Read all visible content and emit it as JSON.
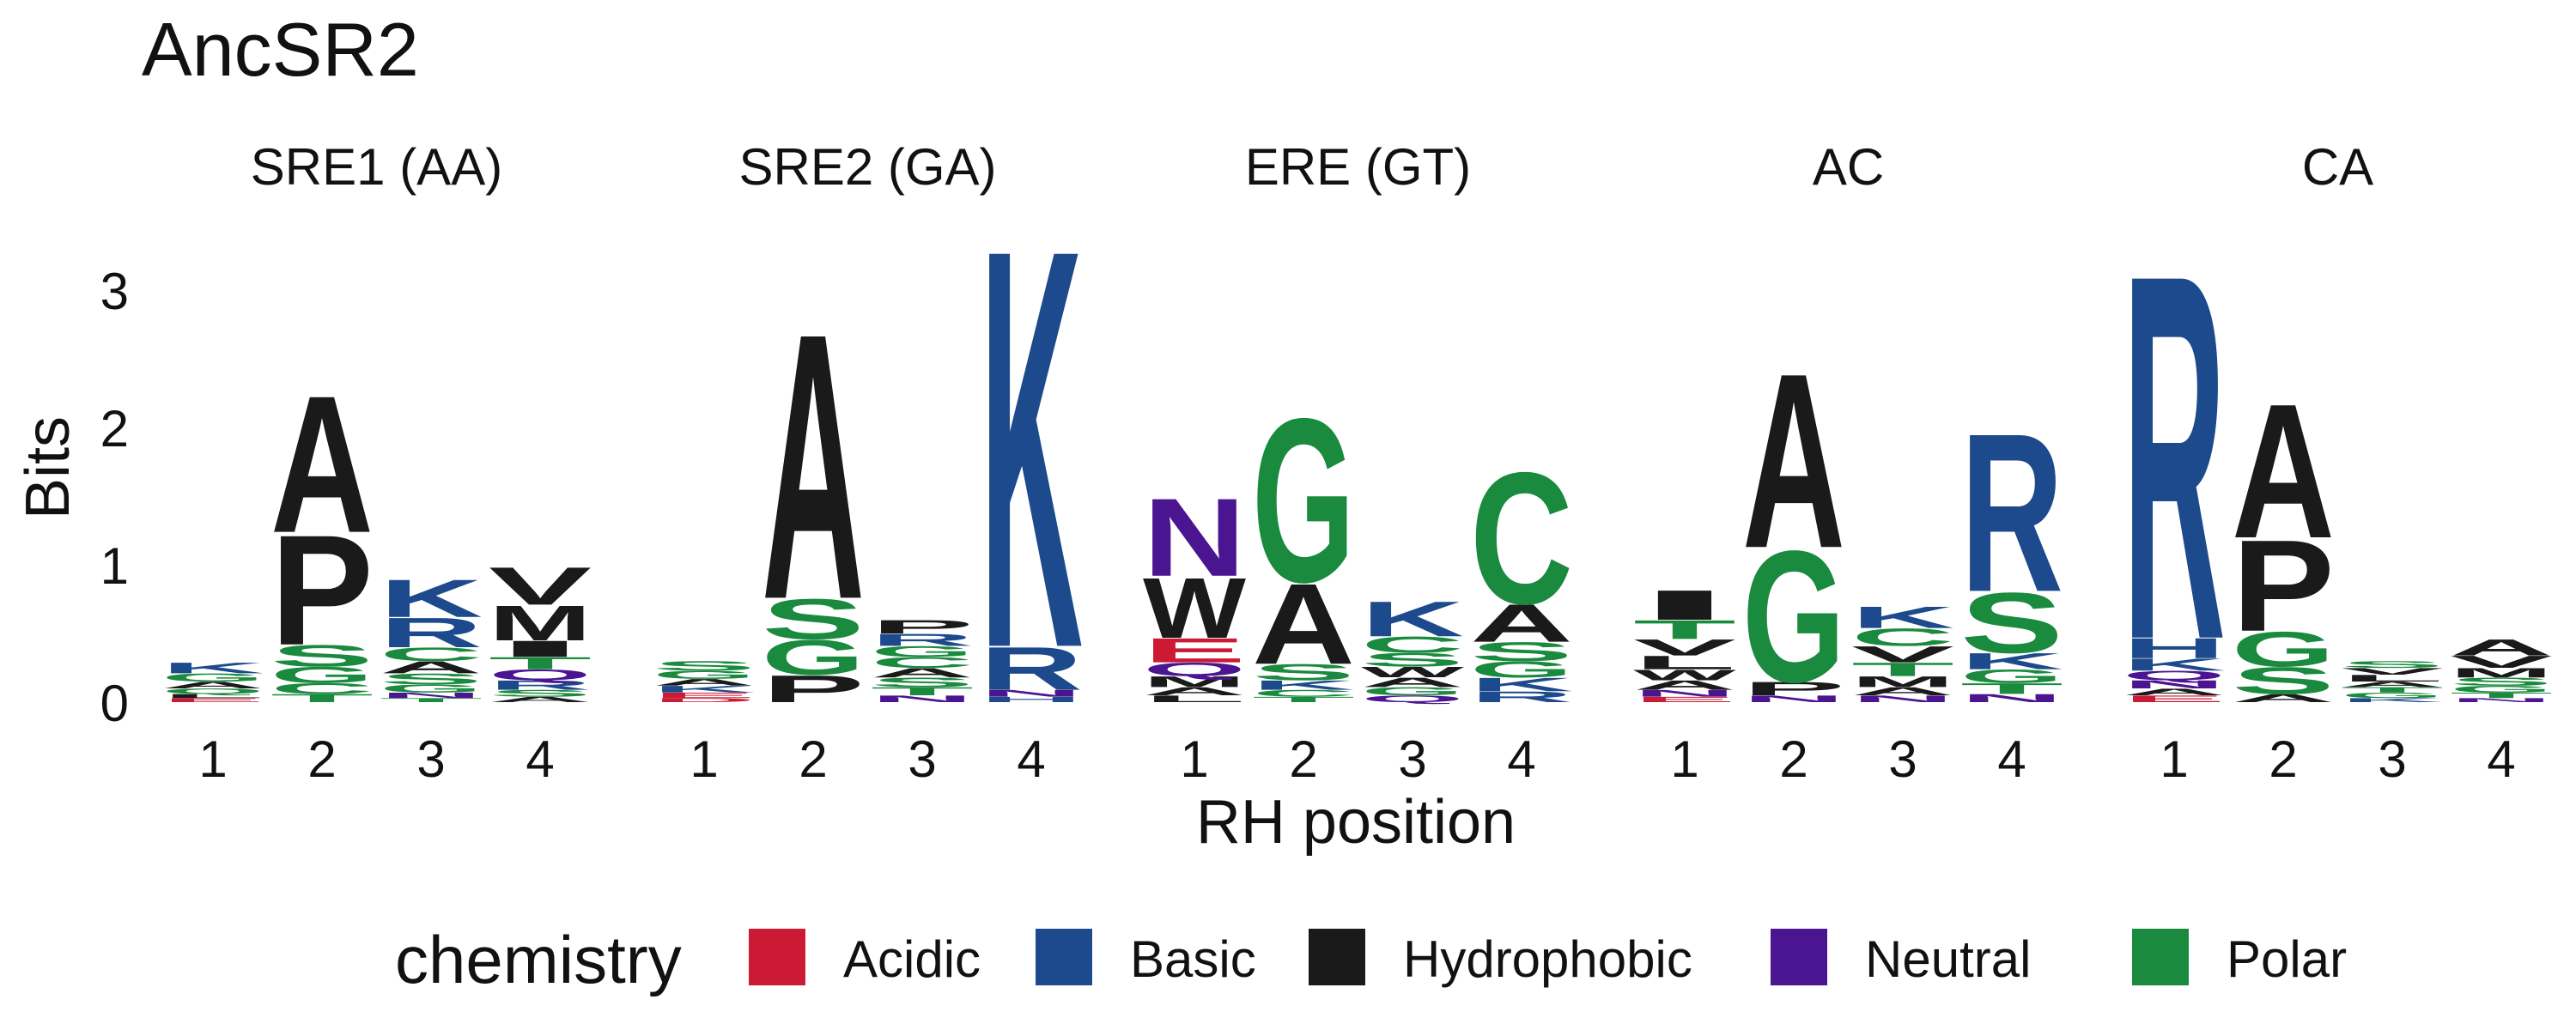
{
  "chart_data": {
    "type": "sequence-logo",
    "title": "AncSR2",
    "xlabel": "RH position",
    "ylabel": "Bits",
    "ylim": [
      0,
      3.4
    ],
    "y_ticks": [
      "0",
      "1",
      "2",
      "3"
    ],
    "positions": [
      "1",
      "2",
      "3",
      "4"
    ],
    "legend": {
      "title": "chemistry",
      "placement": "bottom",
      "entries": [
        {
          "name": "Acidic",
          "color": "#CC1A34"
        },
        {
          "name": "Basic",
          "color": "#1D4A8C"
        },
        {
          "name": "Hydrophobic",
          "color": "#1A1A1A"
        },
        {
          "name": "Neutral",
          "color": "#4B1591"
        },
        {
          "name": "Polar",
          "color": "#1A8A3E"
        }
      ]
    },
    "panels": [
      {
        "name": "SRE1 (AA)",
        "stacks": [
          [
            {
              "aa": "K",
              "class": "Basic",
              "bits": 0.08
            },
            {
              "aa": "G",
              "class": "Polar",
              "bits": 0.06
            },
            {
              "aa": "A",
              "class": "Hydrophobic",
              "bits": 0.05
            },
            {
              "aa": "Q",
              "class": "Polar",
              "bits": 0.04
            },
            {
              "aa": "E",
              "class": "Acidic",
              "bits": 0.03
            },
            {
              "aa": "L",
              "class": "Hydrophobic",
              "bits": 0.03
            }
          ],
          [
            {
              "aa": "A",
              "class": "Hydrophobic",
              "bits": 1.02
            },
            {
              "aa": "P",
              "class": "Hydrophobic",
              "bits": 0.82
            },
            {
              "aa": "S",
              "class": "Polar",
              "bits": 0.16
            },
            {
              "aa": "G",
              "class": "Polar",
              "bits": 0.12
            },
            {
              "aa": "C",
              "class": "Polar",
              "bits": 0.08
            },
            {
              "aa": "T",
              "class": "Polar",
              "bits": 0.06
            }
          ],
          [
            {
              "aa": "K",
              "class": "Basic",
              "bits": 0.28
            },
            {
              "aa": "R",
              "class": "Basic",
              "bits": 0.22
            },
            {
              "aa": "C",
              "class": "Polar",
              "bits": 0.1
            },
            {
              "aa": "A",
              "class": "Hydrophobic",
              "bits": 0.09
            },
            {
              "aa": "S",
              "class": "Polar",
              "bits": 0.08
            },
            {
              "aa": "G",
              "class": "Polar",
              "bits": 0.06
            },
            {
              "aa": "N",
              "class": "Neutral",
              "bits": 0.04
            },
            {
              "aa": "T",
              "class": "Polar",
              "bits": 0.03
            }
          ],
          [
            {
              "aa": "V",
              "class": "Hydrophobic",
              "bits": 0.28
            },
            {
              "aa": "M",
              "class": "Hydrophobic",
              "bits": 0.26
            },
            {
              "aa": "I",
              "class": "Hydrophobic",
              "bits": 0.12
            },
            {
              "aa": "T",
              "class": "Polar",
              "bits": 0.09
            },
            {
              "aa": "Q",
              "class": "Neutral",
              "bits": 0.08
            },
            {
              "aa": "R",
              "class": "Basic",
              "bits": 0.07
            },
            {
              "aa": "S",
              "class": "Polar",
              "bits": 0.05
            },
            {
              "aa": "A",
              "class": "Hydrophobic",
              "bits": 0.04
            }
          ]
        ]
      },
      {
        "name": "SRE2 (GA)",
        "stacks": [
          [
            {
              "aa": "S",
              "class": "Polar",
              "bits": 0.07
            },
            {
              "aa": "G",
              "class": "Polar",
              "bits": 0.06
            },
            {
              "aa": "K",
              "class": "Basic",
              "bits": 0.05
            },
            {
              "aa": "A",
              "class": "Hydrophobic",
              "bits": 0.05
            },
            {
              "aa": "E",
              "class": "Acidic",
              "bits": 0.04
            },
            {
              "aa": "D",
              "class": "Acidic",
              "bits": 0.03
            }
          ],
          [
            {
              "aa": "A",
              "class": "Hydrophobic",
              "bits": 1.98
            },
            {
              "aa": "S",
              "class": "Polar",
              "bits": 0.3
            },
            {
              "aa": "G",
              "class": "Polar",
              "bits": 0.26
            },
            {
              "aa": "P",
              "class": "Hydrophobic",
              "bits": 0.2
            }
          ],
          [
            {
              "aa": "P",
              "class": "Hydrophobic",
              "bits": 0.1
            },
            {
              "aa": "R",
              "class": "Basic",
              "bits": 0.09
            },
            {
              "aa": "C",
              "class": "Polar",
              "bits": 0.08
            },
            {
              "aa": "G",
              "class": "Polar",
              "bits": 0.08
            },
            {
              "aa": "S",
              "class": "Polar",
              "bits": 0.07
            },
            {
              "aa": "A",
              "class": "Hydrophobic",
              "bits": 0.07
            },
            {
              "aa": "T",
              "class": "Polar",
              "bits": 0.06
            },
            {
              "aa": "N",
              "class": "Neutral",
              "bits": 0.05
            }
          ],
          [
            {
              "aa": "K",
              "class": "Basic",
              "bits": 2.97
            },
            {
              "aa": "R",
              "class": "Basic",
              "bits": 0.32
            },
            {
              "aa": "N",
              "class": "Neutral",
              "bits": 0.05
            },
            {
              "aa": "H",
              "class": "Basic",
              "bits": 0.04
            }
          ]
        ]
      },
      {
        "name": "ERE (GT)",
        "stacks": [
          [
            {
              "aa": "N",
              "class": "Neutral",
              "bits": 0.58
            },
            {
              "aa": "W",
              "class": "Hydrophobic",
              "bits": 0.45
            },
            {
              "aa": "E",
              "class": "Acidic",
              "bits": 0.18
            },
            {
              "aa": "Q",
              "class": "Neutral",
              "bits": 0.1
            },
            {
              "aa": "M",
              "class": "Hydrophobic",
              "bits": 0.08
            },
            {
              "aa": "A",
              "class": "Hydrophobic",
              "bits": 0.06
            },
            {
              "aa": "L",
              "class": "Hydrophobic",
              "bits": 0.05
            }
          ],
          [
            {
              "aa": "G",
              "class": "Polar",
              "bits": 1.22
            },
            {
              "aa": "A",
              "class": "Hydrophobic",
              "bits": 0.6
            },
            {
              "aa": "S",
              "class": "Polar",
              "bits": 0.12
            },
            {
              "aa": "K",
              "class": "Basic",
              "bits": 0.07
            },
            {
              "aa": "C",
              "class": "Polar",
              "bits": 0.05
            },
            {
              "aa": "T",
              "class": "Polar",
              "bits": 0.04
            }
          ],
          [
            {
              "aa": "K",
              "class": "Basic",
              "bits": 0.26
            },
            {
              "aa": "C",
              "class": "Polar",
              "bits": 0.12
            },
            {
              "aa": "S",
              "class": "Polar",
              "bits": 0.1
            },
            {
              "aa": "W",
              "class": "Hydrophobic",
              "bits": 0.08
            },
            {
              "aa": "A",
              "class": "Hydrophobic",
              "bits": 0.07
            },
            {
              "aa": "G",
              "class": "Polar",
              "bits": 0.06
            },
            {
              "aa": "Q",
              "class": "Neutral",
              "bits": 0.05
            }
          ],
          [
            {
              "aa": "C",
              "class": "Polar",
              "bits": 0.98
            },
            {
              "aa": "A",
              "class": "Hydrophobic",
              "bits": 0.28
            },
            {
              "aa": "S",
              "class": "Polar",
              "bits": 0.14
            },
            {
              "aa": "G",
              "class": "Polar",
              "bits": 0.12
            },
            {
              "aa": "K",
              "class": "Basic",
              "bits": 0.1
            },
            {
              "aa": "R",
              "class": "Basic",
              "bits": 0.08
            }
          ]
        ]
      },
      {
        "name": "AC",
        "stacks": [
          [
            {
              "aa": "I",
              "class": "Hydrophobic",
              "bits": 0.22
            },
            {
              "aa": "T",
              "class": "Polar",
              "bits": 0.14
            },
            {
              "aa": "V",
              "class": "Hydrophobic",
              "bits": 0.12
            },
            {
              "aa": "L",
              "class": "Hydrophobic",
              "bits": 0.1
            },
            {
              "aa": "W",
              "class": "Hydrophobic",
              "bits": 0.08
            },
            {
              "aa": "A",
              "class": "Hydrophobic",
              "bits": 0.07
            },
            {
              "aa": "N",
              "class": "Neutral",
              "bits": 0.05
            },
            {
              "aa": "E",
              "class": "Acidic",
              "bits": 0.04
            }
          ],
          [
            {
              "aa": "A",
              "class": "Hydrophobic",
              "bits": 1.3
            },
            {
              "aa": "G",
              "class": "Polar",
              "bits": 0.98
            },
            {
              "aa": "P",
              "class": "Hydrophobic",
              "bits": 0.1
            },
            {
              "aa": "N",
              "class": "Neutral",
              "bits": 0.05
            }
          ],
          [
            {
              "aa": "K",
              "class": "Basic",
              "bits": 0.16
            },
            {
              "aa": "C",
              "class": "Polar",
              "bits": 0.13
            },
            {
              "aa": "V",
              "class": "Hydrophobic",
              "bits": 0.12
            },
            {
              "aa": "T",
              "class": "Polar",
              "bits": 0.1
            },
            {
              "aa": "M",
              "class": "Hydrophobic",
              "bits": 0.08
            },
            {
              "aa": "A",
              "class": "Hydrophobic",
              "bits": 0.06
            },
            {
              "aa": "N",
              "class": "Neutral",
              "bits": 0.05
            }
          ],
          [
            {
              "aa": "R",
              "class": "Basic",
              "bits": 1.18
            },
            {
              "aa": "S",
              "class": "Polar",
              "bits": 0.45
            },
            {
              "aa": "K",
              "class": "Basic",
              "bits": 0.12
            },
            {
              "aa": "G",
              "class": "Polar",
              "bits": 0.1
            },
            {
              "aa": "T",
              "class": "Polar",
              "bits": 0.08
            },
            {
              "aa": "N",
              "class": "Neutral",
              "bits": 0.06
            }
          ]
        ]
      },
      {
        "name": "CA",
        "stacks": [
          [
            {
              "aa": "R",
              "class": "Basic",
              "bits": 2.72
            },
            {
              "aa": "H",
              "class": "Basic",
              "bits": 0.15
            },
            {
              "aa": "K",
              "class": "Basic",
              "bits": 0.09
            },
            {
              "aa": "Q",
              "class": "Neutral",
              "bits": 0.07
            },
            {
              "aa": "N",
              "class": "Neutral",
              "bits": 0.06
            },
            {
              "aa": "E",
              "class": "Acidic",
              "bits": 0.05
            },
            {
              "aa": "A",
              "class": "Hydrophobic",
              "bits": 0.05
            }
          ],
          [
            {
              "aa": "A",
              "class": "Hydrophobic",
              "bits": 1.0
            },
            {
              "aa": "P",
              "class": "Hydrophobic",
              "bits": 0.68
            },
            {
              "aa": "G",
              "class": "Polar",
              "bits": 0.26
            },
            {
              "aa": "S",
              "class": "Polar",
              "bits": 0.2
            },
            {
              "aa": "A",
              "class": "Hydrophobic",
              "bits": 0.06
            }
          ],
          [
            {
              "aa": "L",
              "class": "Hydrophobic",
              "bits": 0.05
            },
            {
              "aa": "V",
              "class": "Hydrophobic",
              "bits": 0.05
            },
            {
              "aa": "S",
              "class": "Polar",
              "bits": 0.05
            },
            {
              "aa": "G",
              "class": "Polar",
              "bits": 0.04
            },
            {
              "aa": "T",
              "class": "Polar",
              "bits": 0.04
            },
            {
              "aa": "A",
              "class": "Hydrophobic",
              "bits": 0.04
            },
            {
              "aa": "K",
              "class": "Basic",
              "bits": 0.03
            }
          ],
          [
            {
              "aa": "A",
              "class": "Hydrophobic",
              "bits": 0.12
            },
            {
              "aa": "V",
              "class": "Hydrophobic",
              "bits": 0.09
            },
            {
              "aa": "M",
              "class": "Hydrophobic",
              "bits": 0.07
            },
            {
              "aa": "S",
              "class": "Polar",
              "bits": 0.06
            },
            {
              "aa": "G",
              "class": "Polar",
              "bits": 0.05
            },
            {
              "aa": "T",
              "class": "Polar",
              "bits": 0.04
            },
            {
              "aa": "N",
              "class": "Neutral",
              "bits": 0.03
            }
          ]
        ]
      }
    ]
  }
}
